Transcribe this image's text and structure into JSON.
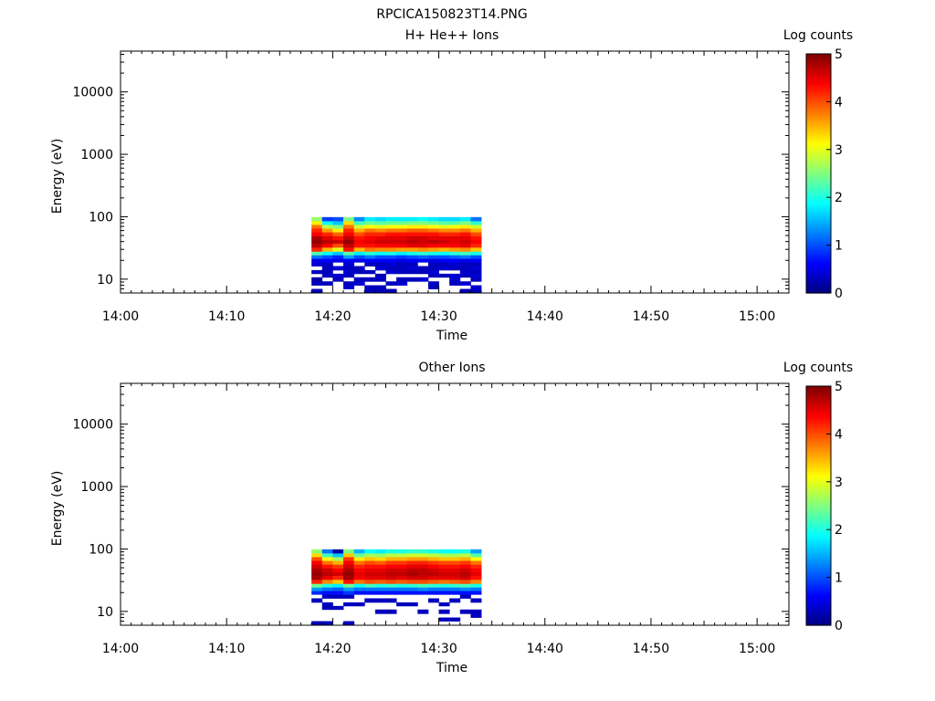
{
  "figure_title": "RPCICA150823T14.PNG",
  "colorbar_ticks": [
    "0",
    "1",
    "2",
    "3",
    "4",
    "5"
  ],
  "chart_data": [
    {
      "type": "heatmap",
      "title": "H+ He++ Ions",
      "xlabel": "Time",
      "ylabel": "Energy (eV)",
      "colorbar_label": "Log counts",
      "colorbar_range": [
        0,
        5
      ],
      "y_scale": "log",
      "ylim": [
        6,
        45000
      ],
      "xlim": [
        "14:00",
        "15:03"
      ],
      "x_ticks": [
        "14:00",
        "14:10",
        "14:20",
        "14:30",
        "14:40",
        "14:50",
        "15:00"
      ],
      "y_ticks": [
        "10",
        "100",
        "1000",
        "10000"
      ],
      "grid": false,
      "time_bins": [
        "14:18",
        "14:19",
        "14:20",
        "14:21",
        "14:22",
        "14:23",
        "14:24",
        "14:25",
        "14:26",
        "14:27",
        "14:28",
        "14:29",
        "14:30",
        "14:31",
        "14:32",
        "14:33"
      ],
      "energy_bins_eV": [
        6.5,
        7.5,
        8.5,
        10,
        11.5,
        13,
        15,
        17.5,
        20,
        23,
        26,
        30,
        35,
        40,
        46,
        53,
        61,
        70,
        80,
        92
      ],
      "values_log_counts": [
        [
          0.3,
          null,
          null,
          null,
          null,
          0.3,
          0.3,
          0.3,
          null,
          null,
          null,
          null,
          null,
          null,
          0.3,
          0.3
        ],
        [
          null,
          null,
          null,
          0.4,
          null,
          0.3,
          0.3,
          null,
          null,
          null,
          null,
          0.3,
          null,
          null,
          null,
          0.4
        ],
        [
          0.3,
          0.3,
          null,
          0.3,
          0.4,
          null,
          null,
          0.3,
          0.4,
          null,
          null,
          0.3,
          null,
          0.3,
          0.4,
          null
        ],
        [
          0.2,
          null,
          0.3,
          null,
          0.3,
          0.3,
          0.3,
          null,
          0.3,
          0.3,
          0.4,
          null,
          null,
          0.4,
          null,
          0.3
        ],
        [
          null,
          0.3,
          0.4,
          0.3,
          null,
          null,
          0.3,
          null,
          null,
          null,
          null,
          0.3,
          0.3,
          0.4,
          0.3,
          0.4
        ],
        [
          0.3,
          0.3,
          null,
          0.4,
          0.3,
          0.3,
          null,
          0.4,
          0.3,
          0.3,
          0.3,
          0.4,
          null,
          null,
          0.4,
          0.3
        ],
        [
          null,
          0.3,
          0.4,
          0.3,
          0.3,
          null,
          0.4,
          0.3,
          0.3,
          0.4,
          0.3,
          0.3,
          0.4,
          0.3,
          0.3,
          0.4
        ],
        [
          0.4,
          0.3,
          null,
          0.4,
          null,
          0.3,
          0.3,
          0.4,
          0.3,
          0.3,
          null,
          0.3,
          0.3,
          0.4,
          0.3,
          0.3
        ],
        [
          0.5,
          0.6,
          0.5,
          0.6,
          0.5,
          0.6,
          0.6,
          0.6,
          0.5,
          0.6,
          0.6,
          0.5,
          0.6,
          0.6,
          0.5,
          0.6
        ],
        [
          1.2,
          1.0,
          0.8,
          1.4,
          1.0,
          1.2,
          1.0,
          1.0,
          0.9,
          1.0,
          1.1,
          1.0,
          1.0,
          1.1,
          1.2,
          1.0
        ],
        [
          2.3,
          1.9,
          1.6,
          2.3,
          1.8,
          2.1,
          1.9,
          2.0,
          1.8,
          2.0,
          2.1,
          2.0,
          1.9,
          2.1,
          2.2,
          2.0
        ],
        [
          4.2,
          3.5,
          3.0,
          4.3,
          3.5,
          3.8,
          3.7,
          3.7,
          3.6,
          3.6,
          3.7,
          3.6,
          3.5,
          3.6,
          3.7,
          3.4
        ],
        [
          4.7,
          4.4,
          4.0,
          4.7,
          4.3,
          4.3,
          4.4,
          4.4,
          4.4,
          4.5,
          4.5,
          4.4,
          4.4,
          4.4,
          4.5,
          4.2
        ],
        [
          4.9,
          4.7,
          4.6,
          4.9,
          4.4,
          4.5,
          4.6,
          4.6,
          4.6,
          4.7,
          4.6,
          4.7,
          4.6,
          4.5,
          4.6,
          4.4
        ],
        [
          4.8,
          4.5,
          4.3,
          4.7,
          4.3,
          4.4,
          4.5,
          4.5,
          4.5,
          4.6,
          4.6,
          4.5,
          4.5,
          4.5,
          4.5,
          4.3
        ],
        [
          4.4,
          4.2,
          3.9,
          4.4,
          4.0,
          4.2,
          4.2,
          4.3,
          4.3,
          4.3,
          4.3,
          4.3,
          4.2,
          4.2,
          4.3,
          4.0
        ],
        [
          4.2,
          3.6,
          3.2,
          4.2,
          3.5,
          3.8,
          3.7,
          3.8,
          3.8,
          3.9,
          3.9,
          3.8,
          3.7,
          3.7,
          3.8,
          3.5
        ],
        [
          3.8,
          2.8,
          2.5,
          3.8,
          2.9,
          3.1,
          3.0,
          3.1,
          3.1,
          3.2,
          3.2,
          3.1,
          3.0,
          3.1,
          3.2,
          2.9
        ],
        [
          3.2,
          1.9,
          1.6,
          3.3,
          2.2,
          2.4,
          2.3,
          2.4,
          2.4,
          2.5,
          2.5,
          2.4,
          2.3,
          2.3,
          2.5,
          2.1
        ],
        [
          2.6,
          0.9,
          1.0,
          2.5,
          1.3,
          1.8,
          1.7,
          1.8,
          1.8,
          1.8,
          1.9,
          1.8,
          1.7,
          1.7,
          1.8,
          1.2
        ]
      ]
    },
    {
      "type": "heatmap",
      "title": "Other Ions",
      "xlabel": "Time",
      "ylabel": "Energy (eV)",
      "colorbar_label": "Log counts",
      "colorbar_range": [
        0,
        5
      ],
      "y_scale": "log",
      "ylim": [
        6,
        45000
      ],
      "xlim": [
        "14:00",
        "15:03"
      ],
      "x_ticks": [
        "14:00",
        "14:10",
        "14:20",
        "14:30",
        "14:40",
        "14:50",
        "15:00"
      ],
      "y_ticks": [
        "10",
        "100",
        "1000",
        "10000"
      ],
      "grid": false,
      "time_bins": [
        "14:18",
        "14:19",
        "14:20",
        "14:21",
        "14:22",
        "14:23",
        "14:24",
        "14:25",
        "14:26",
        "14:27",
        "14:28",
        "14:29",
        "14:30",
        "14:31",
        "14:32",
        "14:33"
      ],
      "energy_bins_eV": [
        6.5,
        7.5,
        8.5,
        10,
        11.5,
        13,
        15,
        17.5,
        20,
        23,
        26,
        30,
        35,
        40,
        46,
        53,
        61,
        70,
        80,
        92
      ],
      "values_log_counts": [
        [
          0.3,
          0.3,
          null,
          0.3,
          null,
          null,
          null,
          null,
          null,
          null,
          null,
          null,
          null,
          null,
          null,
          null
        ],
        [
          null,
          null,
          null,
          null,
          null,
          null,
          null,
          null,
          null,
          null,
          null,
          null,
          0.3,
          0.3,
          null,
          null
        ],
        [
          null,
          null,
          null,
          null,
          null,
          null,
          null,
          null,
          null,
          null,
          null,
          null,
          null,
          null,
          null,
          0.3
        ],
        [
          null,
          null,
          null,
          null,
          null,
          null,
          0.3,
          0.3,
          null,
          null,
          0.3,
          null,
          0.3,
          null,
          0.3,
          0.3
        ],
        [
          null,
          0.3,
          0.3,
          null,
          null,
          null,
          null,
          null,
          null,
          null,
          null,
          null,
          null,
          null,
          null,
          null
        ],
        [
          null,
          0.3,
          null,
          0.3,
          0.3,
          null,
          null,
          null,
          0.3,
          0.3,
          null,
          null,
          0.3,
          null,
          null,
          null
        ],
        [
          0.3,
          null,
          null,
          null,
          null,
          0.3,
          0.3,
          0.3,
          null,
          null,
          null,
          0.3,
          null,
          0.3,
          null,
          0.3
        ],
        [
          null,
          0.3,
          0.3,
          0.3,
          null,
          null,
          null,
          null,
          null,
          null,
          null,
          null,
          null,
          null,
          0.3,
          null
        ],
        [
          0.8,
          0.7,
          0.7,
          0.9,
          0.7,
          0.7,
          0.7,
          0.7,
          0.7,
          0.7,
          0.7,
          0.7,
          0.7,
          0.7,
          0.7,
          0.7
        ],
        [
          1.4,
          1.2,
          1.1,
          1.4,
          1.2,
          1.2,
          1.2,
          1.2,
          1.2,
          1.2,
          1.3,
          1.2,
          1.2,
          1.2,
          1.3,
          1.2
        ],
        [
          2.4,
          2.0,
          1.8,
          2.4,
          1.9,
          2.2,
          2.0,
          2.1,
          2.0,
          2.1,
          2.2,
          2.1,
          2.0,
          2.1,
          2.2,
          2.0
        ],
        [
          4.2,
          3.7,
          3.4,
          4.3,
          3.8,
          4.0,
          3.9,
          4.0,
          3.9,
          4.0,
          4.0,
          3.9,
          3.8,
          3.9,
          4.0,
          3.7
        ],
        [
          4.8,
          4.5,
          4.2,
          4.8,
          4.4,
          4.5,
          4.5,
          4.6,
          4.5,
          4.6,
          4.6,
          4.5,
          4.5,
          4.5,
          4.6,
          4.3
        ],
        [
          4.9,
          4.7,
          4.6,
          4.9,
          4.5,
          4.6,
          4.6,
          4.7,
          4.7,
          4.8,
          4.7,
          4.7,
          4.6,
          4.6,
          4.7,
          4.5
        ],
        [
          4.8,
          4.6,
          4.4,
          4.8,
          4.4,
          4.5,
          4.5,
          4.6,
          4.6,
          4.7,
          4.7,
          4.6,
          4.5,
          4.5,
          4.6,
          4.4
        ],
        [
          4.6,
          4.3,
          4.1,
          4.6,
          4.2,
          4.3,
          4.3,
          4.4,
          4.4,
          4.5,
          4.5,
          4.4,
          4.3,
          4.3,
          4.4,
          4.2
        ],
        [
          4.4,
          3.8,
          3.5,
          4.4,
          3.8,
          4.0,
          3.9,
          4.1,
          4.1,
          4.2,
          4.2,
          4.1,
          4.0,
          4.0,
          4.1,
          3.8
        ],
        [
          4.0,
          3.1,
          2.7,
          4.1,
          3.2,
          3.4,
          3.3,
          3.5,
          3.5,
          3.6,
          3.6,
          3.5,
          3.4,
          3.4,
          3.5,
          3.1
        ],
        [
          3.3,
          2.2,
          1.6,
          3.4,
          2.4,
          2.7,
          2.6,
          2.8,
          2.8,
          2.9,
          2.9,
          2.8,
          2.7,
          2.7,
          2.8,
          2.3
        ],
        [
          2.6,
          1.2,
          0.2,
          2.5,
          1.5,
          1.9,
          1.8,
          2.0,
          2.0,
          2.1,
          2.1,
          2.0,
          1.9,
          1.9,
          2.0,
          1.4
        ]
      ]
    }
  ]
}
